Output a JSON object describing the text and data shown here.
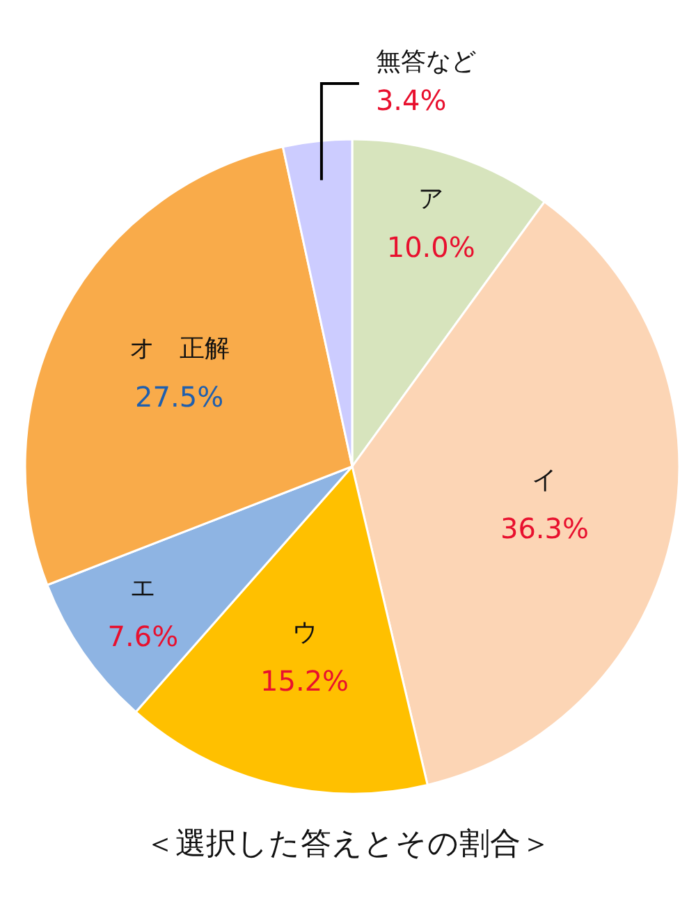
{
  "chart_data": {
    "type": "pie",
    "title": "＜選択した答えとその割合＞",
    "categories": [
      "ア",
      "イ",
      "ウ",
      "エ",
      "オ　正解",
      "無答など"
    ],
    "values": [
      10.0,
      36.3,
      15.2,
      7.6,
      27.5,
      3.4
    ],
    "colors": [
      "#d7e4bd",
      "#fcd5b5",
      "#ffc000",
      "#8eb4e3",
      "#f9ab4a",
      "#ccccff"
    ],
    "value_labels": [
      "10.0%",
      "36.3%",
      "15.2%",
      "7.6%",
      "27.5%",
      "3.4%"
    ]
  }
}
